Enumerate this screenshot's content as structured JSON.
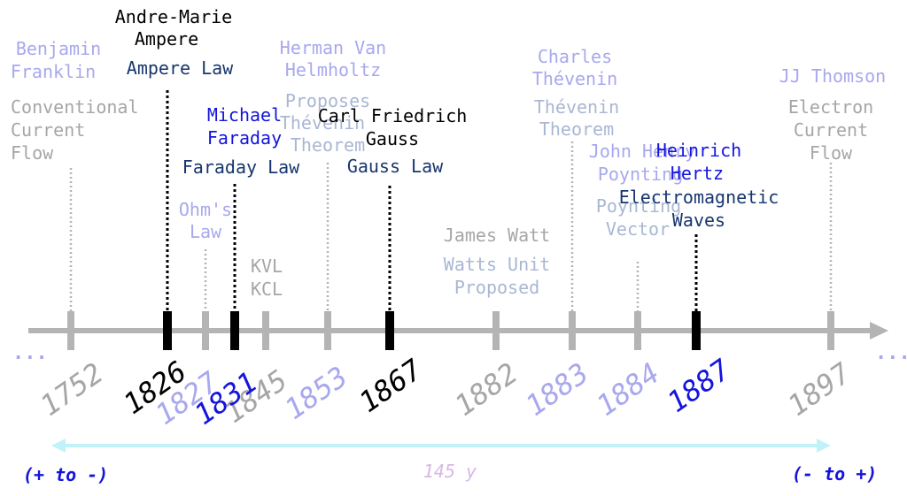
{
  "colors": {
    "axis": "#b4b4b4",
    "grey": "#a6a6a6",
    "lavender": "#a8a8ee",
    "black": "#000000",
    "blue": "#1414dc",
    "navy": "#17366e",
    "lightslate": "#a9b7d2",
    "cyan": "#bff3f7",
    "lilac": "#d6b8e6"
  },
  "ellipsis_left": "...",
  "ellipsis_right": "...",
  "events": [
    {
      "year": "1752",
      "person": [
        "Benjamin",
        "Franklin"
      ],
      "detail": [
        "Conventional",
        "Current",
        "Flow"
      ]
    },
    {
      "year": "1826",
      "person": [
        "Andre-Marie",
        "Ampere"
      ],
      "detail": [
        "Ampere Law"
      ]
    },
    {
      "year": "1827",
      "person": [],
      "detail": [
        "Ohm's",
        "Law"
      ]
    },
    {
      "year": "1831",
      "person": [
        "Michael",
        "Faraday"
      ],
      "detail": [
        "Faraday Law"
      ]
    },
    {
      "year": "1845",
      "person": [],
      "detail": [
        "KVL",
        "KCL"
      ]
    },
    {
      "year": "1853",
      "person": [
        "Herman Van",
        "Helmholtz"
      ],
      "detail": [
        "Proposes",
        "Thévenin",
        "Theorem"
      ]
    },
    {
      "year": "1867",
      "person": [
        "Carl Friedrich",
        "Gauss"
      ],
      "detail": [
        "Gauss Law"
      ]
    },
    {
      "year": "1882",
      "person": [
        "James Watt"
      ],
      "detail": [
        "Watts Unit",
        "Proposed"
      ]
    },
    {
      "year": "1883",
      "person": [
        "Charles",
        "Thévenin"
      ],
      "detail": [
        "Thévenin",
        "Theorem"
      ]
    },
    {
      "year": "1884",
      "person": [
        "John Henry",
        "Poynting"
      ],
      "detail": [
        "Poynting",
        "Vector"
      ]
    },
    {
      "year": "1887",
      "person": [
        "Heinrich",
        "Hertz"
      ],
      "detail": [
        "Electromagnetic",
        "Waves"
      ]
    },
    {
      "year": "1897",
      "person": [
        "JJ Thomson"
      ],
      "detail": [
        "Electron",
        "Current",
        "Flow"
      ]
    }
  ],
  "span": {
    "left": "(+ to -)",
    "middle": "145 y",
    "right": "(- to +)"
  }
}
